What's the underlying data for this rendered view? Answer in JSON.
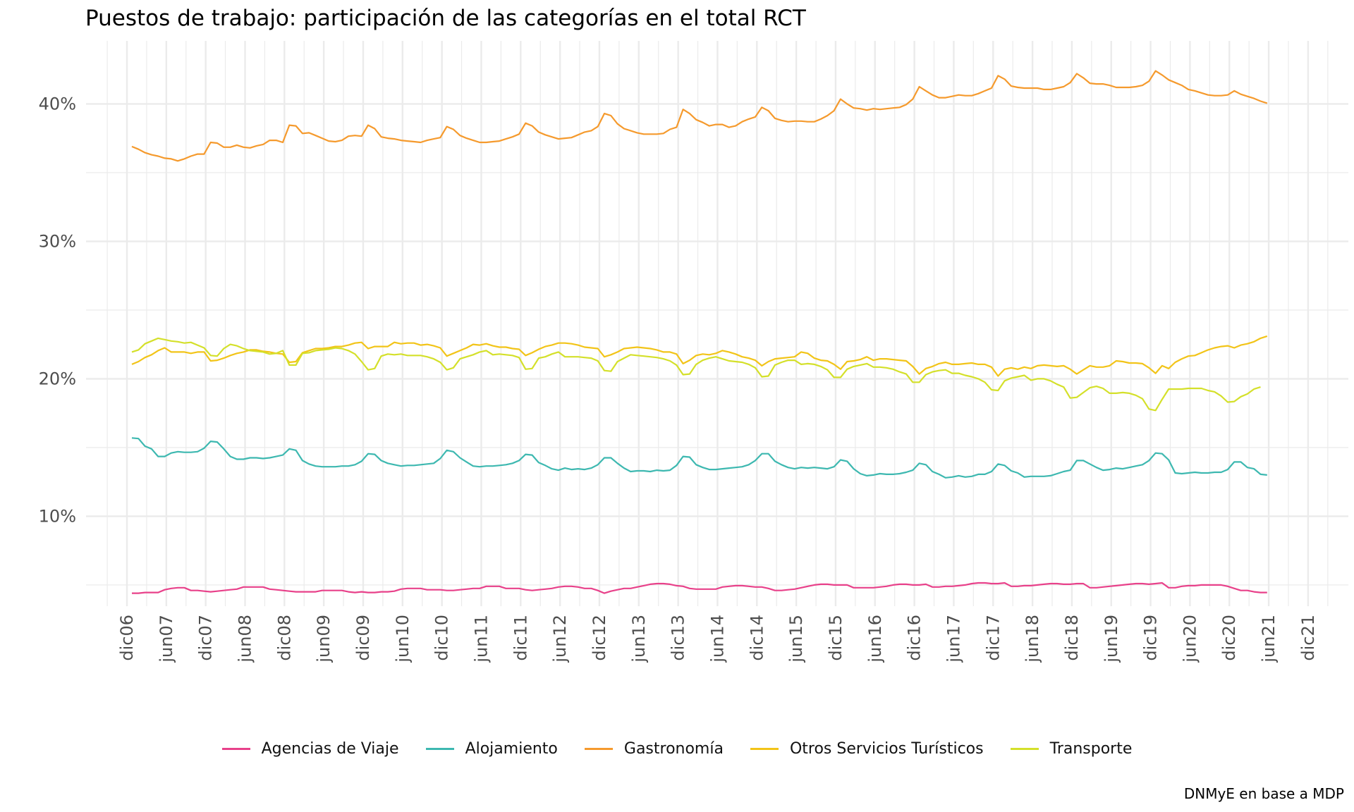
{
  "title": "Puestos de trabajo: participación de las categorías en el total RCT",
  "caption": "DNMyE en base a MDP",
  "chart_data": {
    "type": "line",
    "title": "Puestos de trabajo: participación de las categorías en el total RCT",
    "xlabel": "",
    "ylabel": "",
    "x_start": "2006-12",
    "x_frequency": "monthly",
    "x_ticks": [
      "dic06",
      "jun07",
      "dic07",
      "jun08",
      "dic08",
      "jun09",
      "dic09",
      "jun10",
      "dic10",
      "jun11",
      "dic11",
      "jun12",
      "dic12",
      "jun13",
      "dic13",
      "jun14",
      "dic14",
      "jun15",
      "dic15",
      "jun16",
      "dic16",
      "jun17",
      "dic17",
      "jun18",
      "dic18",
      "jun19",
      "dic19",
      "jun20",
      "dic20",
      "jun21",
      "dic21"
    ],
    "y_ticks": [
      "10%",
      "20%",
      "30%",
      "40%"
    ],
    "ylim": [
      3.5,
      44
    ],
    "grid": true,
    "legend_position": "bottom",
    "series": [
      {
        "name": "Agencias de Viaje",
        "color": "#E8418A",
        "values": [
          4.4,
          4.4,
          4.45,
          4.45,
          4.45,
          4.65,
          4.75,
          4.8,
          4.8,
          4.6,
          4.6,
          4.55,
          4.5,
          4.55,
          4.6,
          4.65,
          4.7,
          4.85,
          4.85,
          4.85,
          4.85,
          4.7,
          4.65,
          4.6,
          4.55,
          4.5,
          4.5,
          4.5,
          4.5,
          4.6,
          4.6,
          4.6,
          4.6,
          4.5,
          4.45,
          4.5,
          4.45,
          4.45,
          4.5,
          4.5,
          4.55,
          4.7,
          4.75,
          4.75,
          4.75,
          4.65,
          4.65,
          4.65,
          4.6,
          4.6,
          4.65,
          4.7,
          4.75,
          4.75,
          4.9,
          4.9,
          4.9,
          4.75,
          4.75,
          4.75,
          4.65,
          4.6,
          4.65,
          4.7,
          4.75,
          4.85,
          4.9,
          4.9,
          4.85,
          4.75,
          4.75,
          4.6,
          4.4,
          4.55,
          4.65,
          4.75,
          4.75,
          4.85,
          4.95,
          5.05,
          5.1,
          5.1,
          5.05,
          4.95,
          4.9,
          4.75,
          4.7,
          4.7,
          4.7,
          4.7,
          4.85,
          4.9,
          4.95,
          4.95,
          4.9,
          4.85,
          4.85,
          4.75,
          4.6,
          4.6,
          4.65,
          4.7,
          4.8,
          4.9,
          5.0,
          5.05,
          5.05,
          5.0,
          5.0,
          5.0,
          4.8,
          4.8,
          4.8,
          4.8,
          4.85,
          4.9,
          5.0,
          5.05,
          5.05,
          5.0,
          5.0,
          5.05,
          4.85,
          4.85,
          4.9,
          4.9,
          4.95,
          5.0,
          5.1,
          5.15,
          5.15,
          5.1,
          5.1,
          5.15,
          4.9,
          4.9,
          4.95,
          4.95,
          5.0,
          5.05,
          5.1,
          5.1,
          5.05,
          5.05,
          5.1,
          5.1,
          4.8,
          4.8,
          4.85,
          4.9,
          4.95,
          5.0,
          5.05,
          5.1,
          5.1,
          5.05,
          5.1,
          5.15,
          4.8,
          4.8,
          4.9,
          4.95,
          4.95,
          5.0,
          5.0,
          5.0,
          5.0,
          4.9,
          4.75,
          4.6,
          4.6,
          4.5,
          4.45,
          4.45
        ]
      },
      {
        "name": "Alojamiento",
        "color": "#3DB8B0",
        "values": [
          15.7,
          15.65,
          15.1,
          14.9,
          14.35,
          14.35,
          14.6,
          14.7,
          14.65,
          14.65,
          14.7,
          14.95,
          15.45,
          15.4,
          14.9,
          14.35,
          14.15,
          14.15,
          14.25,
          14.25,
          14.2,
          14.25,
          14.35,
          14.45,
          14.9,
          14.8,
          14.05,
          13.8,
          13.65,
          13.6,
          13.6,
          13.6,
          13.65,
          13.65,
          13.75,
          14.0,
          14.55,
          14.5,
          14.05,
          13.85,
          13.75,
          13.65,
          13.7,
          13.7,
          13.75,
          13.8,
          13.85,
          14.2,
          14.8,
          14.7,
          14.25,
          13.95,
          13.65,
          13.6,
          13.65,
          13.65,
          13.7,
          13.75,
          13.85,
          14.05,
          14.5,
          14.45,
          13.9,
          13.7,
          13.45,
          13.35,
          13.5,
          13.4,
          13.45,
          13.4,
          13.5,
          13.75,
          14.25,
          14.25,
          13.85,
          13.5,
          13.25,
          13.3,
          13.3,
          13.25,
          13.35,
          13.3,
          13.35,
          13.7,
          14.35,
          14.3,
          13.75,
          13.55,
          13.4,
          13.4,
          13.45,
          13.5,
          13.55,
          13.6,
          13.75,
          14.05,
          14.55,
          14.55,
          14.0,
          13.75,
          13.55,
          13.45,
          13.55,
          13.5,
          13.55,
          13.5,
          13.45,
          13.6,
          14.1,
          14.0,
          13.45,
          13.1,
          12.95,
          13.0,
          13.1,
          13.05,
          13.05,
          13.1,
          13.2,
          13.35,
          13.85,
          13.75,
          13.25,
          13.05,
          12.8,
          12.85,
          12.95,
          12.85,
          12.9,
          13.05,
          13.05,
          13.25,
          13.8,
          13.7,
          13.3,
          13.15,
          12.85,
          12.9,
          12.9,
          12.9,
          12.95,
          13.1,
          13.25,
          13.35,
          14.05,
          14.05,
          13.8,
          13.55,
          13.35,
          13.4,
          13.5,
          13.45,
          13.55,
          13.65,
          13.75,
          14.05,
          14.6,
          14.55,
          14.1,
          13.15,
          13.1,
          13.15,
          13.2,
          13.15,
          13.15,
          13.2,
          13.2,
          13.4,
          13.95,
          13.95,
          13.55,
          13.45,
          13.05,
          13.0
        ]
      },
      {
        "name": "Gastronomía",
        "color": "#F59A2D",
        "values": [
          36.9,
          36.7,
          36.45,
          36.3,
          36.2,
          36.05,
          36.0,
          35.85,
          36.0,
          36.2,
          36.35,
          36.35,
          37.2,
          37.15,
          36.85,
          36.85,
          37.0,
          36.85,
          36.8,
          36.95,
          37.05,
          37.35,
          37.35,
          37.2,
          38.45,
          38.4,
          37.85,
          37.9,
          37.7,
          37.5,
          37.3,
          37.25,
          37.35,
          37.65,
          37.7,
          37.65,
          38.45,
          38.2,
          37.6,
          37.5,
          37.45,
          37.35,
          37.3,
          37.25,
          37.2,
          37.35,
          37.45,
          37.55,
          38.35,
          38.15,
          37.7,
          37.5,
          37.35,
          37.2,
          37.2,
          37.25,
          37.3,
          37.45,
          37.6,
          37.8,
          38.6,
          38.4,
          37.95,
          37.75,
          37.6,
          37.45,
          37.5,
          37.55,
          37.75,
          37.95,
          38.05,
          38.35,
          39.3,
          39.15,
          38.55,
          38.2,
          38.05,
          37.9,
          37.8,
          37.8,
          37.8,
          37.85,
          38.15,
          38.3,
          39.6,
          39.3,
          38.85,
          38.65,
          38.4,
          38.5,
          38.5,
          38.3,
          38.4,
          38.7,
          38.9,
          39.05,
          39.75,
          39.5,
          38.95,
          38.8,
          38.7,
          38.75,
          38.75,
          38.7,
          38.7,
          38.9,
          39.15,
          39.5,
          40.35,
          40.0,
          39.7,
          39.65,
          39.55,
          39.65,
          39.6,
          39.65,
          39.7,
          39.75,
          39.95,
          40.35,
          41.25,
          40.95,
          40.65,
          40.45,
          40.45,
          40.55,
          40.65,
          40.6,
          40.6,
          40.75,
          40.95,
          41.15,
          42.05,
          41.8,
          41.3,
          41.2,
          41.15,
          41.15,
          41.15,
          41.05,
          41.05,
          41.15,
          41.25,
          41.55,
          42.2,
          41.9,
          41.5,
          41.45,
          41.45,
          41.35,
          41.2,
          41.2,
          41.2,
          41.25,
          41.35,
          41.65,
          42.4,
          42.1,
          41.75,
          41.55,
          41.35,
          41.05,
          40.95,
          40.8,
          40.65,
          40.6,
          40.6,
          40.65,
          40.95,
          40.7,
          40.55,
          40.4,
          40.2,
          40.05
        ]
      },
      {
        "name": "Otros Servicios Turísticos",
        "color": "#F2C418",
        "values": [
          21.05,
          21.25,
          21.55,
          21.75,
          22.05,
          22.25,
          21.95,
          21.95,
          21.95,
          21.85,
          21.95,
          21.95,
          21.3,
          21.35,
          21.5,
          21.7,
          21.85,
          21.95,
          22.1,
          22.1,
          22.0,
          21.95,
          21.85,
          21.8,
          21.2,
          21.25,
          21.9,
          22.05,
          22.2,
          22.2,
          22.25,
          22.35,
          22.35,
          22.45,
          22.6,
          22.65,
          22.2,
          22.35,
          22.35,
          22.35,
          22.65,
          22.55,
          22.6,
          22.6,
          22.45,
          22.5,
          22.4,
          22.25,
          21.65,
          21.85,
          22.05,
          22.25,
          22.5,
          22.45,
          22.55,
          22.4,
          22.3,
          22.3,
          22.2,
          22.15,
          21.7,
          21.9,
          22.15,
          22.35,
          22.45,
          22.6,
          22.6,
          22.55,
          22.45,
          22.3,
          22.25,
          22.2,
          21.6,
          21.75,
          21.95,
          22.2,
          22.25,
          22.3,
          22.25,
          22.2,
          22.1,
          21.95,
          21.95,
          21.8,
          21.1,
          21.35,
          21.7,
          21.8,
          21.75,
          21.85,
          22.05,
          21.95,
          21.8,
          21.6,
          21.5,
          21.35,
          20.95,
          21.25,
          21.45,
          21.5,
          21.55,
          21.6,
          21.95,
          21.85,
          21.5,
          21.35,
          21.3,
          21.05,
          20.7,
          21.25,
          21.3,
          21.4,
          21.6,
          21.35,
          21.45,
          21.45,
          21.4,
          21.35,
          21.3,
          20.9,
          20.35,
          20.75,
          20.9,
          21.1,
          21.2,
          21.05,
          21.05,
          21.1,
          21.15,
          21.05,
          21.05,
          20.85,
          20.2,
          20.7,
          20.8,
          20.7,
          20.85,
          20.75,
          20.95,
          21.0,
          20.95,
          20.9,
          20.95,
          20.7,
          20.35,
          20.65,
          20.95,
          20.85,
          20.85,
          20.95,
          21.3,
          21.25,
          21.15,
          21.15,
          21.1,
          20.8,
          20.4,
          20.95,
          20.75,
          21.2,
          21.45,
          21.65,
          21.7,
          21.9,
          22.1,
          22.25,
          22.35,
          22.4,
          22.25,
          22.45,
          22.55,
          22.7,
          22.95,
          23.1
        ]
      },
      {
        "name": "Transporte",
        "color": "#D4E02A",
        "values": [
          21.95,
          22.1,
          22.55,
          22.75,
          22.95,
          22.85,
          22.75,
          22.7,
          22.6,
          22.65,
          22.45,
          22.25,
          21.7,
          21.65,
          22.2,
          22.5,
          22.4,
          22.2,
          22.05,
          22.0,
          21.95,
          21.8,
          21.85,
          22.05,
          21.0,
          21.0,
          21.85,
          21.9,
          22.05,
          22.1,
          22.15,
          22.25,
          22.2,
          22.05,
          21.8,
          21.25,
          20.65,
          20.75,
          21.65,
          21.8,
          21.75,
          21.8,
          21.7,
          21.7,
          21.7,
          21.6,
          21.45,
          21.2,
          20.65,
          20.8,
          21.45,
          21.6,
          21.75,
          21.95,
          22.05,
          21.75,
          21.8,
          21.75,
          21.7,
          21.55,
          20.7,
          20.75,
          21.5,
          21.6,
          21.8,
          21.95,
          21.6,
          21.6,
          21.6,
          21.55,
          21.5,
          21.3,
          20.6,
          20.55,
          21.25,
          21.5,
          21.75,
          21.7,
          21.65,
          21.6,
          21.55,
          21.45,
          21.3,
          21.0,
          20.3,
          20.35,
          21.05,
          21.35,
          21.5,
          21.6,
          21.45,
          21.3,
          21.25,
          21.2,
          21.05,
          20.8,
          20.15,
          20.2,
          21.0,
          21.2,
          21.35,
          21.35,
          21.05,
          21.1,
          21.05,
          20.9,
          20.65,
          20.1,
          20.1,
          20.7,
          20.9,
          21.0,
          21.1,
          20.85,
          20.85,
          20.8,
          20.7,
          20.5,
          20.35,
          19.75,
          19.75,
          20.3,
          20.5,
          20.6,
          20.65,
          20.4,
          20.4,
          20.25,
          20.15,
          20.0,
          19.75,
          19.2,
          19.15,
          19.85,
          20.05,
          20.15,
          20.25,
          19.9,
          20.0,
          20.0,
          19.85,
          19.6,
          19.4,
          18.6,
          18.65,
          19.0,
          19.35,
          19.45,
          19.3,
          18.95,
          18.95,
          19.0,
          18.95,
          18.8,
          18.55,
          17.8,
          17.7,
          18.5,
          19.25,
          19.25,
          19.25,
          19.3,
          19.3,
          19.3,
          19.15,
          19.05,
          18.75,
          18.3,
          18.35,
          18.7,
          18.9,
          19.25,
          19.4
        ]
      }
    ]
  }
}
